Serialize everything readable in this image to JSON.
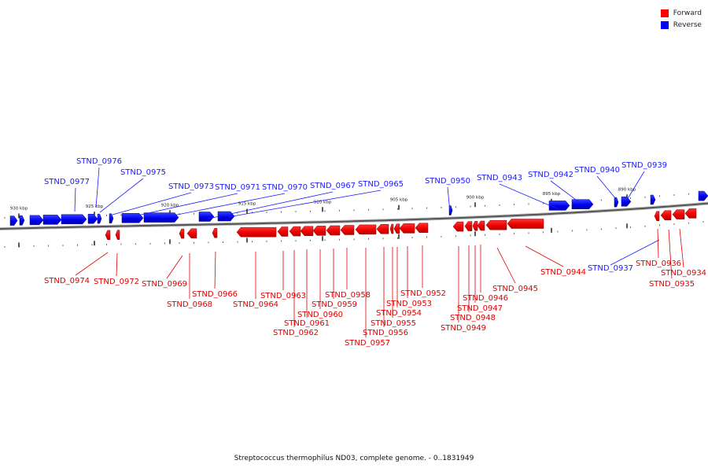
{
  "legend": {
    "forward_label": "Forward",
    "reverse_label": "Reverse",
    "forward_color": "#ff0000",
    "reverse_color": "#0000ff"
  },
  "caption": "Streptococcus thermophilus ND03, complete genome. - 0..1831949",
  "scale_labels": [
    "930 kbp",
    "925 kbp",
    "920 kbp",
    "915 kbp",
    "910 kbp",
    "905 kbp",
    "900 kbp",
    "895 kbp",
    "890 kbp"
  ],
  "reverse_gene_labels": [
    "STND_0977",
    "STND_0976",
    "STND_0975",
    "STND_0973",
    "STND_0971",
    "STND_0970",
    "STND_0967",
    "STND_0965",
    "STND_0950",
    "STND_0943",
    "STND_0942",
    "STND_0940",
    "STND_0939",
    "STND_0937"
  ],
  "forward_gene_labels": [
    "STND_0974",
    "STND_0972",
    "STND_0969",
    "STND_0968",
    "STND_0966",
    "STND_0964",
    "STND_0963",
    "STND_0962",
    "STND_0961",
    "STND_0960",
    "STND_0959",
    "STND_0958",
    "STND_0957",
    "STND_0956",
    "STND_0955",
    "STND_0954",
    "STND_0953",
    "STND_0952",
    "STND_0949",
    "STND_0948",
    "STND_0947",
    "STND_0946",
    "STND_0945",
    "STND_0944",
    "STND_0936",
    "STND_0935",
    "STND_0934"
  ]
}
